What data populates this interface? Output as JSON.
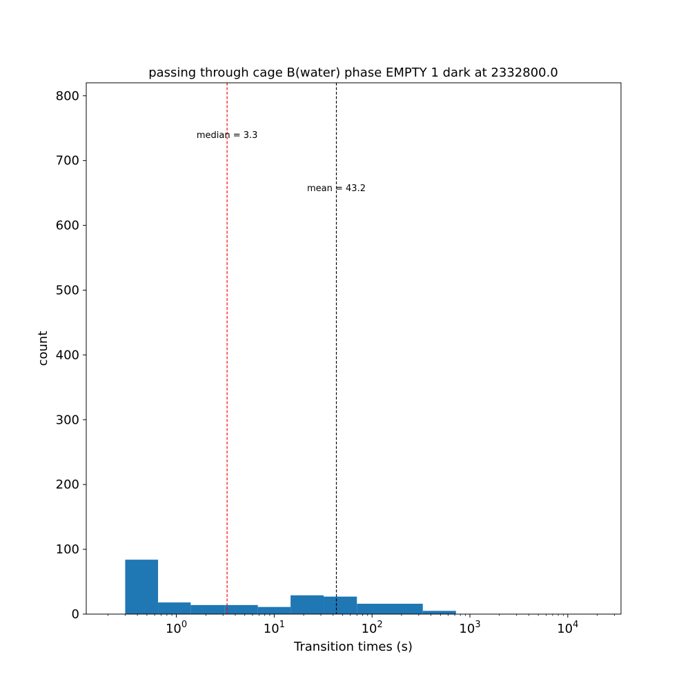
{
  "chart_data": {
    "type": "bar",
    "title": "passing through cage B(water) phase EMPTY 1 dark at 2332800.0",
    "xlabel": "Transition times (s)",
    "ylabel": "count",
    "x_scale": "log",
    "xlim": [
      0.12,
      35000
    ],
    "ylim": [
      0,
      820
    ],
    "x_ticks": [
      {
        "value": 1,
        "base": "10",
        "exp": "0"
      },
      {
        "value": 10,
        "base": "10",
        "exp": "1"
      },
      {
        "value": 100,
        "base": "10",
        "exp": "2"
      },
      {
        "value": 1000,
        "base": "10",
        "exp": "3"
      },
      {
        "value": 10000,
        "base": "10",
        "exp": "4"
      }
    ],
    "y_ticks": [
      0,
      100,
      200,
      300,
      400,
      500,
      600,
      700,
      800
    ],
    "bins": [
      {
        "x0": 0.3,
        "x1": 0.65,
        "count": 84
      },
      {
        "x0": 0.65,
        "x1": 1.4,
        "count": 18
      },
      {
        "x0": 1.4,
        "x1": 3.1,
        "count": 14
      },
      {
        "x0": 3.1,
        "x1": 6.8,
        "count": 14
      },
      {
        "x0": 6.8,
        "x1": 14.7,
        "count": 11
      },
      {
        "x0": 14.7,
        "x1": 32,
        "count": 29
      },
      {
        "x0": 32,
        "x1": 70,
        "count": 27
      },
      {
        "x0": 70,
        "x1": 152,
        "count": 16
      },
      {
        "x0": 152,
        "x1": 330,
        "count": 16
      },
      {
        "x0": 330,
        "x1": 720,
        "count": 5
      },
      {
        "x0": 720,
        "x1": 1560,
        "count": 0
      },
      {
        "x0": 1560,
        "x1": 3400,
        "count": 0
      },
      {
        "x0": 3400,
        "x1": 7400,
        "count": 0
      },
      {
        "x0": 7400,
        "x1": 16000,
        "count": 0
      }
    ],
    "bar_color": "#1f77b4",
    "vlines": [
      {
        "name": "median",
        "x": 3.3,
        "color": "#ff0000",
        "style": "dashed",
        "label": "median =  3.3",
        "label_y": 740
      },
      {
        "name": "mean",
        "x": 43.2,
        "color": "#000000",
        "style": "dashed",
        "label": "mean = 43.2",
        "label_y": 658
      }
    ],
    "grid": false,
    "legend": "none"
  }
}
